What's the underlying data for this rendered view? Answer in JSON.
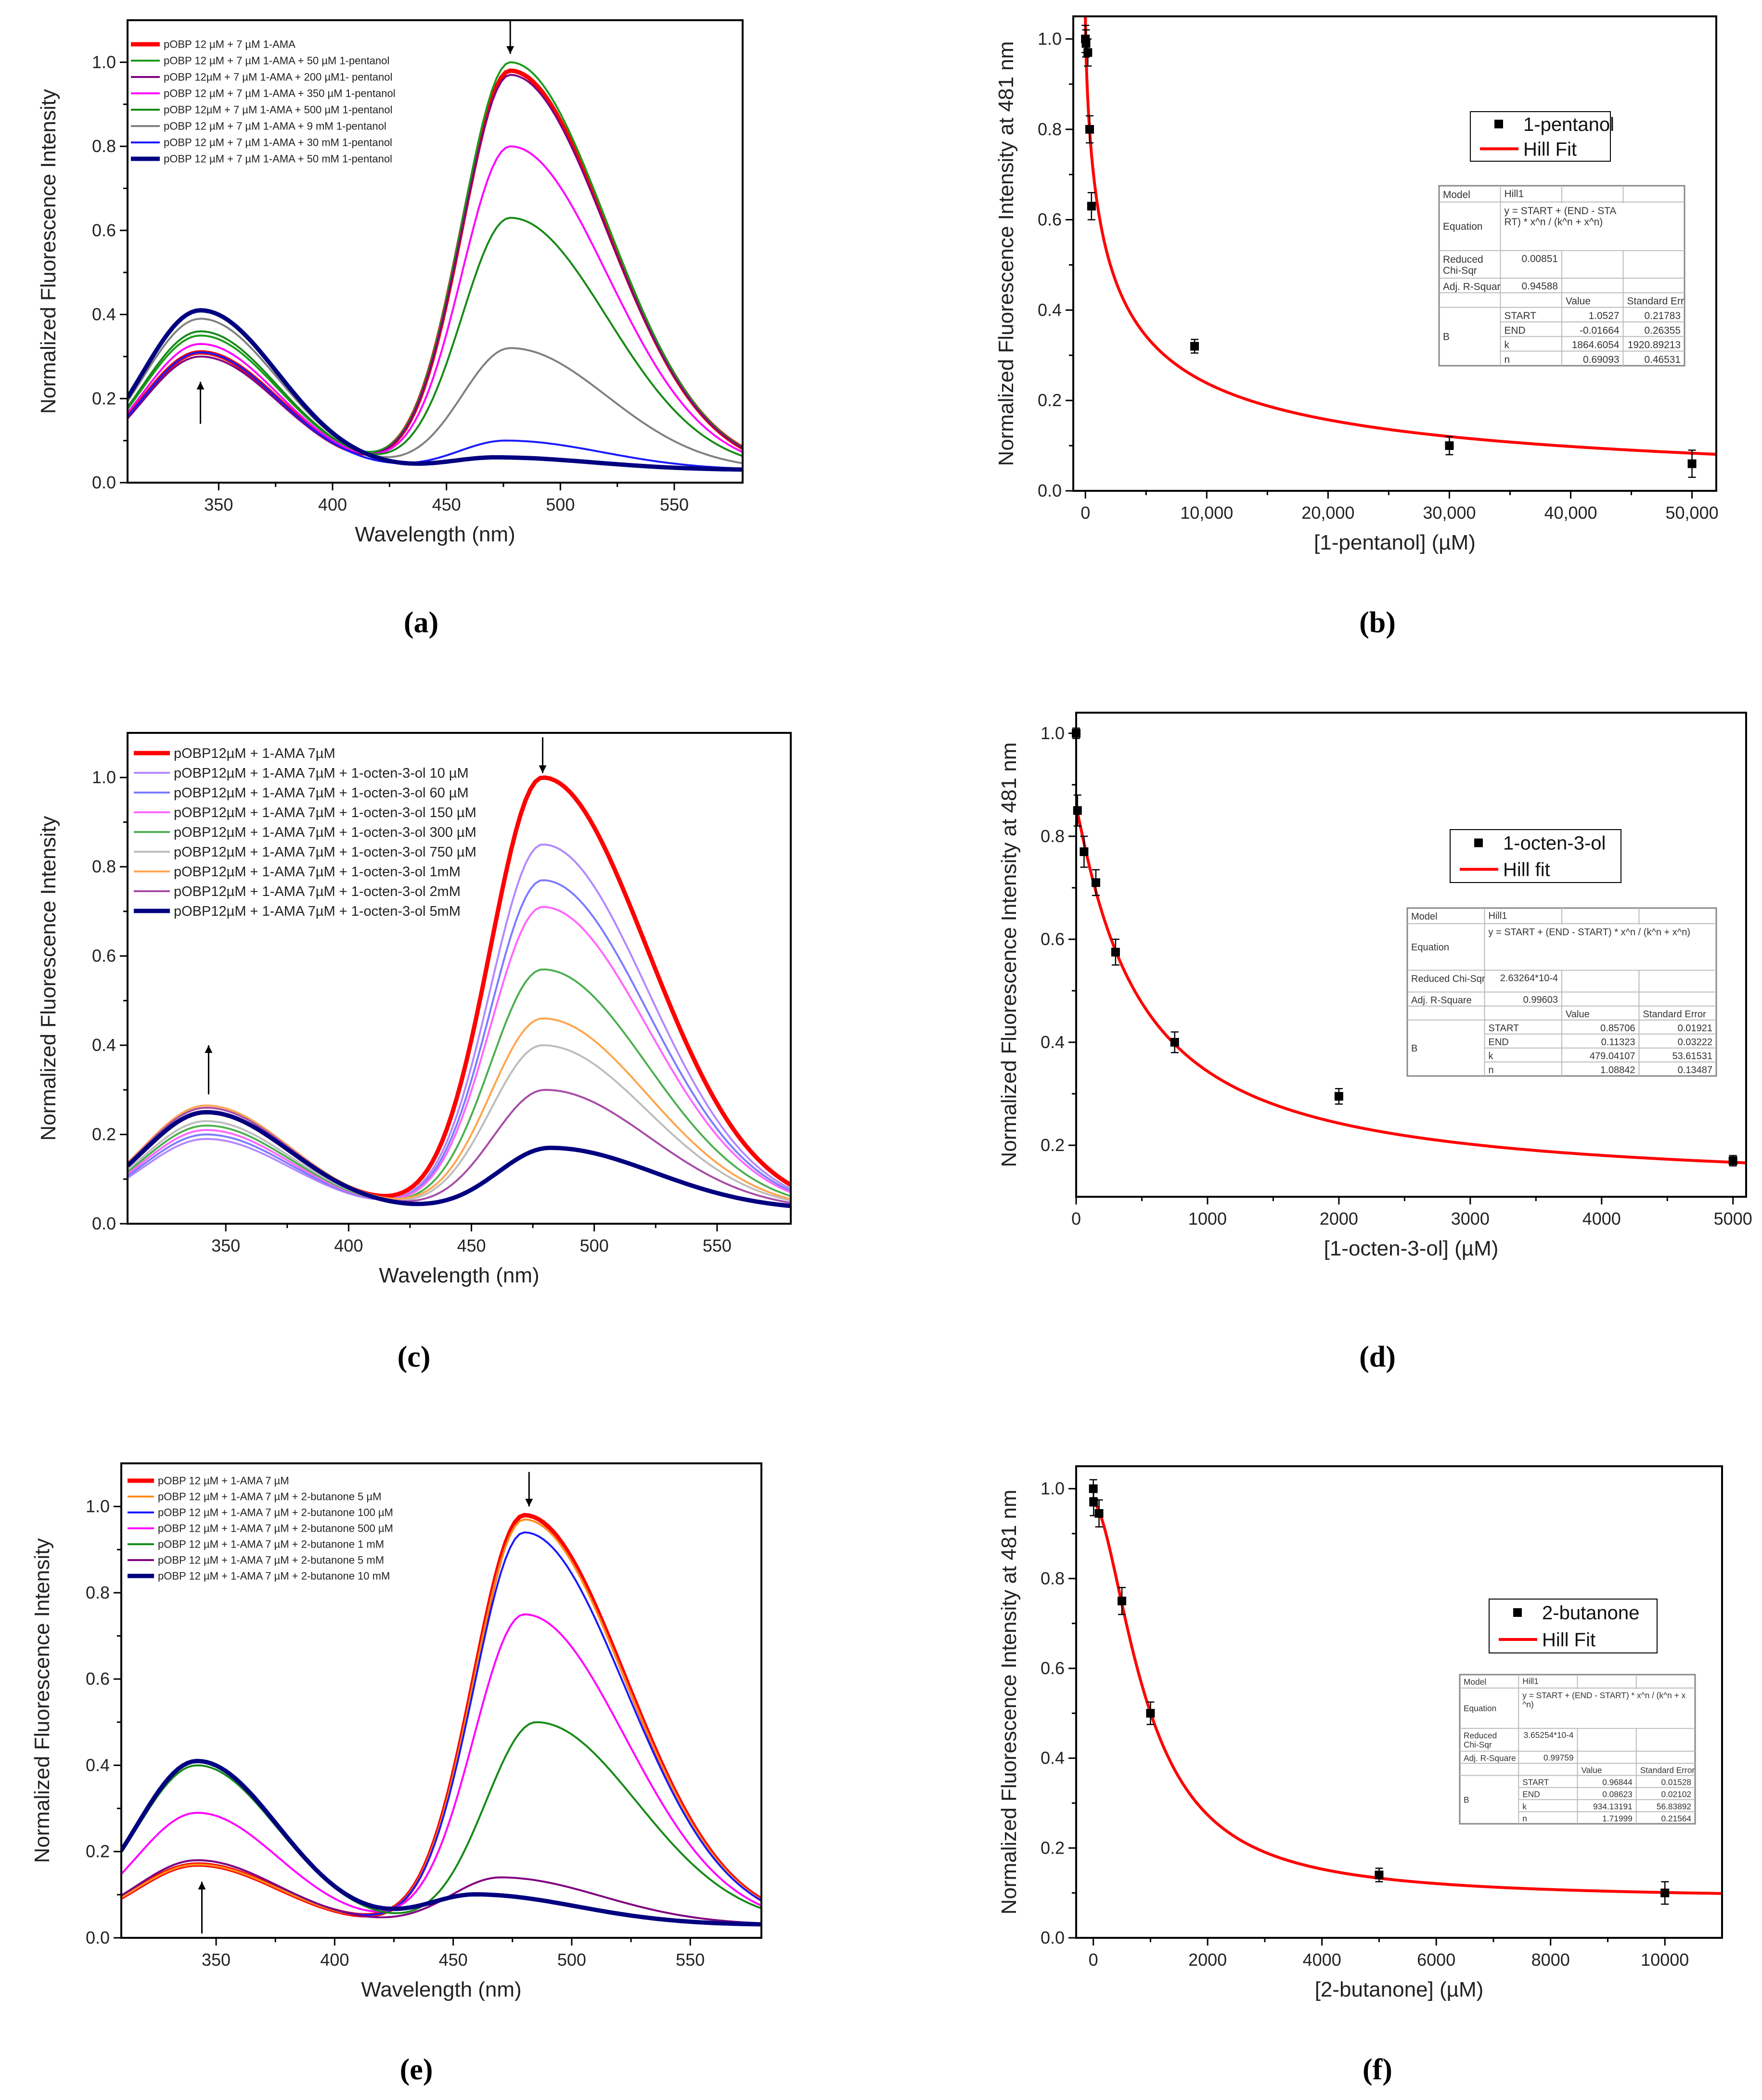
{
  "figure": {
    "panel_labels": [
      "(a)",
      "(b)",
      "(c)",
      "(d)",
      "(e)",
      "(f)"
    ]
  },
  "chart_data": [
    {
      "type": "line",
      "xlabel": "Wavelength (nm)",
      "ylabel": "Normalized Fluorescence Intensity",
      "xlim": [
        310,
        580
      ],
      "ylim": [
        0,
        1.1
      ],
      "xticks": [
        350,
        400,
        450,
        500,
        550
      ],
      "xtick_labels": [
        "350",
        "400",
        "450",
        "500",
        "550"
      ],
      "yticks": [
        0,
        0.2,
        0.4,
        0.6,
        0.8,
        1.0
      ],
      "ytick_labels": [
        "0.0",
        "0.2",
        "0.4",
        "0.6",
        "0.8",
        "1.0"
      ],
      "arrows": [
        {
          "x": 478,
          "from": 1.1,
          "to": 1.02
        },
        {
          "x": 342,
          "from": 0.14,
          "to": 0.24
        }
      ],
      "series": [
        {
          "name": "pOBP 12 µM + 7 µM 1-AMA",
          "color": "#ff0000",
          "bold": true,
          "band1_peak": 0.31,
          "band2_peak": 0.98,
          "band2_center": 478
        },
        {
          "name": "pOBP 12 µM + 7 µM 1-AMA + 50 µM 1-pentanol",
          "color": "#1a9a1a",
          "band1_peak": 0.35,
          "band2_peak": 1.0,
          "band2_center": 478
        },
        {
          "name": "pOBP 12µM + 7 µM 1-AMA + 200 µM1- pentanol",
          "color": "#800080",
          "band1_peak": 0.3,
          "band2_peak": 0.97,
          "band2_center": 478
        },
        {
          "name": "pOBP 12 µM + 7 µM 1-AMA + 350 µM 1-pentanol",
          "color": "#ff00ff",
          "band1_peak": 0.33,
          "band2_peak": 0.8,
          "band2_center": 478
        },
        {
          "name": "pOBP 12µM + 7 µM 1-AMA + 500 µM 1-pentanol",
          "color": "#168a16",
          "band1_peak": 0.36,
          "band2_peak": 0.63,
          "band2_center": 478
        },
        {
          "name": "pOBP 12 µM + 7 µM 1-AMA + 9 mM 1-pentanol",
          "color": "#808080",
          "band1_peak": 0.39,
          "band2_peak": 0.32,
          "band2_center": 478
        },
        {
          "name": "pOBP 12 µM + 7 µM 1-AMA + 30 mM 1-pentanol",
          "color": "#1a1aff",
          "band1_peak": 0.31,
          "band2_peak": 0.1,
          "band2_center": 476
        },
        {
          "name": "pOBP 12 µM + 7 µM 1-AMA + 50 mM 1-pentanol",
          "color": "#000080",
          "bold": true,
          "band1_peak": 0.41,
          "band2_peak": 0.06,
          "band2_center": 472
        }
      ]
    },
    {
      "type": "scatter",
      "xlabel": "[1-pentanol] (µM)",
      "ylabel": "Normalized Fluorescence Intensity at 481 nm",
      "xlim": [
        -1000,
        52000
      ],
      "ylim": [
        0,
        1.05
      ],
      "xticks": [
        0,
        10000,
        20000,
        30000,
        40000,
        50000
      ],
      "xtick_labels": [
        "0",
        "10,000",
        "20,000",
        "30,000",
        "40,000",
        "50,000"
      ],
      "yticks": [
        0,
        0.2,
        0.4,
        0.6,
        0.8,
        1.0
      ],
      "ytick_labels": [
        "0.0",
        "0.2",
        "0.4",
        "0.6",
        "0.8",
        "1.0"
      ],
      "points": [
        {
          "x": 0,
          "y": 1.0,
          "err": 0.03
        },
        {
          "x": 50,
          "y": 0.99,
          "err": 0.03
        },
        {
          "x": 200,
          "y": 0.97,
          "err": 0.03
        },
        {
          "x": 350,
          "y": 0.8,
          "err": 0.03
        },
        {
          "x": 500,
          "y": 0.63,
          "err": 0.03
        },
        {
          "x": 9000,
          "y": 0.32,
          "err": 0.015
        },
        {
          "x": 30000,
          "y": 0.1,
          "err": 0.02
        },
        {
          "x": 50000,
          "y": 0.06,
          "err": 0.03
        }
      ],
      "legend": {
        "points_label": "1-pentanol",
        "fit_label": "Hill Fit"
      },
      "fit_table": {
        "model_label": "Model",
        "model": "Hill1",
        "equation_label": "Equation",
        "equation_lines": [
          "y = START + (END - STA",
          "RT) * x^n  /  (k^n  +  x^n)"
        ],
        "chi_label_lines": [
          "Reduced",
          "Chi-Sqr"
        ],
        "chi": "0.00851",
        "adj_label": "Adj. R-Squar",
        "adj": "0.94588",
        "value_header": "Value",
        "error_header": "Standard Err",
        "group": "B",
        "params": [
          {
            "name": "START",
            "value": "1.0527",
            "error": "0.21783"
          },
          {
            "name": "END",
            "value": "-0.01664",
            "error": "0.26355"
          },
          {
            "name": "k",
            "value": "1864.6054",
            "error": "1920.89213"
          },
          {
            "name": "n",
            "value": "0.69093",
            "error": "0.46531"
          }
        ]
      }
    },
    {
      "type": "line",
      "xlabel": "Wavelength (nm)",
      "ylabel": "Normalized Fluorescence Intensity",
      "xlim": [
        310,
        580
      ],
      "ylim": [
        0,
        1.1
      ],
      "xticks": [
        350,
        400,
        450,
        500,
        550
      ],
      "xtick_labels": [
        "350",
        "400",
        "450",
        "500",
        "550"
      ],
      "yticks": [
        0,
        0.2,
        0.4,
        0.6,
        0.8,
        1.0
      ],
      "ytick_labels": [
        "0.0",
        "0.2",
        "0.4",
        "0.6",
        "0.8",
        "1.0"
      ],
      "arrows": [
        {
          "x": 479,
          "from": 1.09,
          "to": 1.01
        },
        {
          "x": 343,
          "from": 0.29,
          "to": 0.4
        }
      ],
      "series": [
        {
          "name": "pOBP12µM + 1-AMA  7µM",
          "color": "#ff0000",
          "bold": true,
          "band1_peak": 0.25,
          "band2_peak": 1.0,
          "band2_center": 479
        },
        {
          "name": "pOBP12µM + 1-AMA  7µM + 1-octen-3-ol 10 µM",
          "color": "#b388ff",
          "band1_peak": 0.19,
          "band2_peak": 0.85,
          "band2_center": 479
        },
        {
          "name": "pOBP12µM + 1-AMA  7µM + 1-octen-3-ol 60 µM",
          "color": "#7b7bff",
          "band1_peak": 0.2,
          "band2_peak": 0.77,
          "band2_center": 479
        },
        {
          "name": "pOBP12µM + 1-AMA  7µM + 1-octen-3-ol 150 µM",
          "color": "#ff66ff",
          "band1_peak": 0.21,
          "band2_peak": 0.71,
          "band2_center": 479
        },
        {
          "name": "pOBP12µM + 1-AMA  7µM + 1-octen-3-ol 300 µM",
          "color": "#4caf50",
          "band1_peak": 0.22,
          "band2_peak": 0.57,
          "band2_center": 479
        },
        {
          "name": "pOBP12µM + 1-AMA  7µM + 1-octen-3-ol 750 µM",
          "color": "#bdbdbd",
          "band1_peak": 0.23,
          "band2_peak": 0.4,
          "band2_center": 479
        },
        {
          "name": "pOBP12µM + 1-AMA  7µM + 1-octen-3-ol 1mM",
          "color": "#ffa54f",
          "band1_peak": 0.265,
          "band2_peak": 0.46,
          "band2_center": 479
        },
        {
          "name": "pOBP12µM + 1-AMA  7µM + 1-octen-3-ol 2mM",
          "color": "#a64ca6",
          "band1_peak": 0.26,
          "band2_peak": 0.3,
          "band2_center": 480
        },
        {
          "name": "pOBP12µM + 1-AMA  7µM + 1-octen-3-ol 5mM",
          "color": "#000080",
          "bold": true,
          "band1_peak": 0.25,
          "band2_peak": 0.17,
          "band2_center": 482
        }
      ]
    },
    {
      "type": "scatter",
      "xlabel": "[1-octen-3-ol] (µM)",
      "ylabel": "Normalized Fluorescence Intensity at 481 nm",
      "xlim": [
        0,
        5100
      ],
      "ylim": [
        0.1,
        1.04
      ],
      "xticks": [
        0,
        1000,
        2000,
        3000,
        4000,
        5000
      ],
      "xtick_labels": [
        "0",
        "1000",
        "2000",
        "3000",
        "4000",
        "5000"
      ],
      "yticks": [
        0.2,
        0.4,
        0.6,
        0.8,
        1.0
      ],
      "ytick_labels": [
        "0.2",
        "0.4",
        "0.6",
        "0.8",
        "1.0"
      ],
      "points": [
        {
          "x": 0,
          "y": 1.0,
          "err": 0.01
        },
        {
          "x": 10,
          "y": 0.85,
          "err": 0.03
        },
        {
          "x": 60,
          "y": 0.77,
          "err": 0.03
        },
        {
          "x": 150,
          "y": 0.71,
          "err": 0.025
        },
        {
          "x": 300,
          "y": 0.575,
          "err": 0.025
        },
        {
          "x": 750,
          "y": 0.4,
          "err": 0.02
        },
        {
          "x": 2000,
          "y": 0.295,
          "err": 0.015
        },
        {
          "x": 5000,
          "y": 0.17,
          "err": 0.01
        }
      ],
      "legend": {
        "points_label": "1-octen-3-ol",
        "fit_label": "Hill fit"
      },
      "fit_table": {
        "model_label": "Model",
        "model": "Hill1",
        "equation_label": "Equation",
        "equation_lines": [
          "y = START + (END - START) * x^n  /  (k^n  +  x^n)"
        ],
        "chi_label_lines": [
          "Reduced Chi-Sqr"
        ],
        "chi": "2.63264*10-4",
        "adj_label": "Adj. R-Square",
        "adj": "0.99603",
        "value_header": "Value",
        "error_header": "Standard Error",
        "group": "B",
        "params": [
          {
            "name": "START",
            "value": "0.85706",
            "error": "0.01921"
          },
          {
            "name": "END",
            "value": "0.11323",
            "error": "0.03222"
          },
          {
            "name": "k",
            "value": "479.04107",
            "error": "53.61531"
          },
          {
            "name": "n",
            "value": "1.08842",
            "error": "0.13487"
          }
        ]
      }
    },
    {
      "type": "line",
      "xlabel": "Wavelength (nm)",
      "ylabel": "Normalized Fluorescence Intensity",
      "xlim": [
        310,
        580
      ],
      "ylim": [
        0,
        1.1
      ],
      "xticks": [
        350,
        400,
        450,
        500,
        550
      ],
      "xtick_labels": [
        "350",
        "400",
        "450",
        "500",
        "550"
      ],
      "yticks": [
        0,
        0.2,
        0.4,
        0.6,
        0.8,
        1.0
      ],
      "ytick_labels": [
        "0.0",
        "0.2",
        "0.4",
        "0.6",
        "0.8",
        "1.0"
      ],
      "arrows": [
        {
          "x": 482,
          "from": 1.08,
          "to": 1.0
        },
        {
          "x": 344,
          "from": 0.01,
          "to": 0.13
        }
      ],
      "series": [
        {
          "name": "pOBP 12 µM + 1-AMA 7 µM",
          "color": "#ff0000",
          "bold": true,
          "band1_peak": 0.17,
          "band2_peak": 0.98,
          "band2_center": 480
        },
        {
          "name": "pOBP 12 µM + 1-AMA 7 µM + 2-butanone 5  µM",
          "color": "#ff8c1a",
          "band1_peak": 0.17,
          "band2_peak": 0.97,
          "band2_center": 480
        },
        {
          "name": "pOBP 12 µM + 1-AMA 7 µM + 2-butanone 100 µM",
          "color": "#1a1aff",
          "band1_peak": 0.18,
          "band2_peak": 0.94,
          "band2_center": 480
        },
        {
          "name": "pOBP 12 µM + 1-AMA 7 µM + 2-butanone 500 µM",
          "color": "#ff00ff",
          "band1_peak": 0.29,
          "band2_peak": 0.75,
          "band2_center": 480
        },
        {
          "name": "pOBP 12 µM + 1-AMA 7 µM + 2-butanone 1 mM",
          "color": "#168a16",
          "band1_peak": 0.4,
          "band2_peak": 0.5,
          "band2_center": 485
        },
        {
          "name": "pOBP 12 µM + 1-AMA 7 µM + 2-butanone 5 mM",
          "color": "#800080",
          "band1_peak": 0.18,
          "band2_peak": 0.14,
          "band2_center": 470
        },
        {
          "name": "pOBP 12 µM + 1-AMA 7 µM + 2-butanone 10 mM",
          "color": "#000080",
          "bold": true,
          "band1_peak": 0.41,
          "band2_peak": 0.1,
          "band2_center": 460
        }
      ]
    },
    {
      "type": "scatter",
      "xlabel": "[2-butanone] (µM)",
      "ylabel": "Normalized Fluorescence Intensity at 481 nm",
      "xlim": [
        -300,
        11000
      ],
      "ylim": [
        0,
        1.05
      ],
      "xticks": [
        0,
        2000,
        4000,
        6000,
        8000,
        10000
      ],
      "xtick_labels": [
        "0",
        "2000",
        "4000",
        "6000",
        "8000",
        "10000"
      ],
      "yticks": [
        0,
        0.2,
        0.4,
        0.6,
        0.8,
        1.0
      ],
      "ytick_labels": [
        "0.0",
        "0.2",
        "0.4",
        "0.6",
        "0.8",
        "1.0"
      ],
      "points": [
        {
          "x": 0,
          "y": 1.0,
          "err": 0.02
        },
        {
          "x": 5,
          "y": 0.97,
          "err": 0.03
        },
        {
          "x": 100,
          "y": 0.945,
          "err": 0.03
        },
        {
          "x": 500,
          "y": 0.75,
          "err": 0.03
        },
        {
          "x": 1000,
          "y": 0.5,
          "err": 0.025
        },
        {
          "x": 5000,
          "y": 0.14,
          "err": 0.015
        },
        {
          "x": 10000,
          "y": 0.1,
          "err": 0.025
        }
      ],
      "legend": {
        "points_label": "2-butanone",
        "fit_label": "Hill Fit"
      },
      "fit_table": {
        "model_label": "Model",
        "model": "Hill1",
        "equation_label": "Equation",
        "equation_lines": [
          "y = START + (END - START) * x^n  /  (k^n  +  x",
          "^n)"
        ],
        "chi_label_lines": [
          "Reduced",
          "Chi-Sqr"
        ],
        "chi": "3.65254*10-4",
        "adj_label": "Adj. R-Square",
        "adj": "0.99759",
        "value_header": "Value",
        "error_header": "Standard Error",
        "group": "B",
        "params": [
          {
            "name": "START",
            "value": "0.96844",
            "error": "0.01528"
          },
          {
            "name": "END",
            "value": "0.08623",
            "error": "0.02102"
          },
          {
            "name": "k",
            "value": "934.13191",
            "error": "56.83892"
          },
          {
            "name": "n",
            "value": "1.71999",
            "error": "0.21564"
          }
        ]
      }
    }
  ]
}
